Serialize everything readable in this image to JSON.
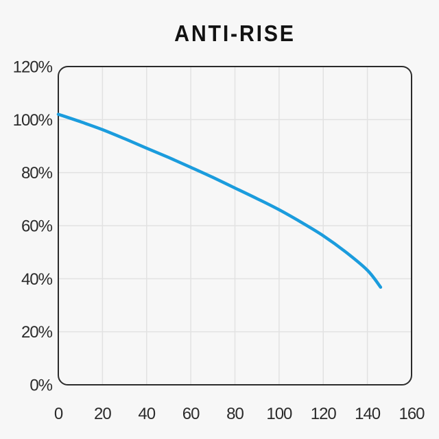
{
  "page": {
    "title": "ANTI-RISE"
  },
  "chart_data": {
    "type": "line",
    "title": "ANTI-RISE",
    "xlabel": "",
    "ylabel": "",
    "xlim": [
      0,
      160
    ],
    "ylim": [
      0,
      120
    ],
    "x_ticks": [
      0,
      20,
      40,
      60,
      80,
      100,
      120,
      140,
      160
    ],
    "y_ticks": [
      0,
      20,
      40,
      60,
      80,
      100,
      120
    ],
    "x_tick_suffix": "",
    "y_tick_suffix": "%",
    "grid": true,
    "legend": "none",
    "series": [
      {
        "name": "anti-rise",
        "color": "#1b9cdd",
        "points": [
          [
            0,
            102
          ],
          [
            10,
            99.2
          ],
          [
            20,
            96.2
          ],
          [
            30,
            92.8
          ],
          [
            40,
            89.2
          ],
          [
            50,
            85.7
          ],
          [
            60,
            82
          ],
          [
            70,
            78.2
          ],
          [
            80,
            74.2
          ],
          [
            90,
            70.2
          ],
          [
            100,
            66
          ],
          [
            110,
            61.3
          ],
          [
            120,
            56.2
          ],
          [
            130,
            50.2
          ],
          [
            140,
            43.2
          ],
          [
            146,
            36.8
          ]
        ]
      }
    ],
    "colors": {
      "background": "#f7f7f7",
      "grid": "#e2e2e2",
      "border": "#2b2b2b",
      "text": "#2b2b2b",
      "curve": "#1b9cdd"
    }
  }
}
